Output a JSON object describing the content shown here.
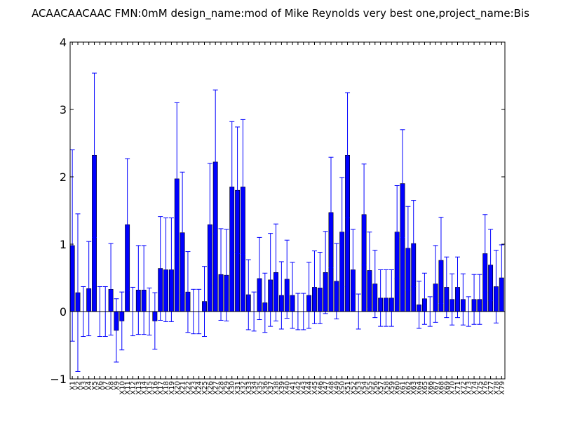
{
  "chart_data": {
    "type": "bar",
    "title": "ACAACAACAAC  FMN:0mM  design_name:mod of Mike Reynolds very best one,project_name:Bis",
    "xlabel": "",
    "ylabel": "",
    "ylim": [
      -1,
      4
    ],
    "yticks": [
      -1,
      0,
      1,
      2,
      3,
      4
    ],
    "grid": false,
    "legend": "none",
    "colors": {
      "bar": "#0000ff",
      "bar_edge": "#000000",
      "error": "#0000ff"
    },
    "categories": [
      "X1",
      "X2",
      "X3",
      "X4",
      "X5",
      "X6",
      "X7",
      "X8",
      "X9",
      "X10",
      "X11",
      "X12",
      "X13",
      "X14",
      "X15",
      "X16",
      "X17",
      "X18",
      "X19",
      "X20",
      "X21",
      "X22",
      "X23",
      "X24",
      "X25",
      "X26",
      "X27",
      "X28",
      "X29",
      "X30",
      "X31",
      "X32",
      "X33",
      "X34",
      "X35",
      "X36",
      "X37",
      "X38",
      "X39",
      "X40",
      "X41",
      "X42",
      "X43",
      "X44",
      "X45",
      "X46",
      "X47",
      "X48",
      "X49",
      "X50",
      "X51",
      "X52",
      "X53",
      "X54",
      "X55",
      "X56",
      "X57",
      "X58",
      "X59",
      "X60",
      "X61",
      "X62",
      "X63",
      "X64",
      "X65",
      "X66",
      "X67",
      "X68",
      "X69",
      "X70",
      "X71",
      "X72",
      "X73",
      "X74",
      "X75",
      "X76",
      "X77",
      "X78",
      "X79"
    ],
    "values": [
      0.98,
      0.28,
      0.0,
      0.34,
      2.32,
      0.0,
      0.0,
      0.33,
      -0.28,
      -0.14,
      1.29,
      0.0,
      0.32,
      0.32,
      0.0,
      -0.14,
      0.64,
      0.62,
      0.62,
      1.97,
      1.17,
      0.29,
      0.0,
      0.0,
      0.15,
      1.29,
      2.22,
      0.55,
      0.54,
      1.85,
      1.8,
      1.85,
      0.25,
      0.0,
      0.49,
      0.13,
      0.47,
      0.58,
      0.24,
      0.48,
      0.24,
      0.0,
      0.0,
      0.24,
      0.36,
      0.35,
      0.58,
      1.47,
      0.45,
      1.18,
      2.32,
      0.62,
      0.0,
      1.44,
      0.61,
      0.41,
      0.2,
      0.2,
      0.2,
      1.18,
      1.9,
      0.94,
      1.01,
      0.1,
      0.19,
      0.0,
      0.41,
      0.76,
      0.36,
      0.18,
      0.36,
      0.18,
      0.0,
      0.18,
      0.18,
      0.86,
      0.69,
      0.37,
      0.5
    ],
    "errors": [
      1.42,
      1.17,
      0.37,
      0.7,
      1.22,
      0.37,
      0.37,
      0.68,
      0.47,
      0.43,
      0.98,
      0.36,
      0.66,
      0.66,
      0.35,
      0.42,
      0.77,
      0.77,
      0.77,
      1.13,
      0.9,
      0.6,
      0.33,
      0.33,
      0.52,
      0.91,
      1.07,
      0.68,
      0.68,
      0.97,
      0.94,
      1.0,
      0.52,
      0.29,
      0.61,
      0.44,
      0.69,
      0.72,
      0.5,
      0.58,
      0.49,
      0.27,
      0.27,
      0.49,
      0.54,
      0.53,
      0.61,
      0.82,
      0.56,
      0.81,
      0.93,
      0.6,
      0.26,
      0.75,
      0.57,
      0.5,
      0.42,
      0.42,
      0.42,
      0.69,
      0.8,
      0.62,
      0.64,
      0.35,
      0.38,
      0.22,
      0.57,
      0.64,
      0.45,
      0.38,
      0.45,
      0.38,
      0.22,
      0.37,
      0.37,
      0.58,
      0.53,
      0.54,
      0.49
    ]
  }
}
